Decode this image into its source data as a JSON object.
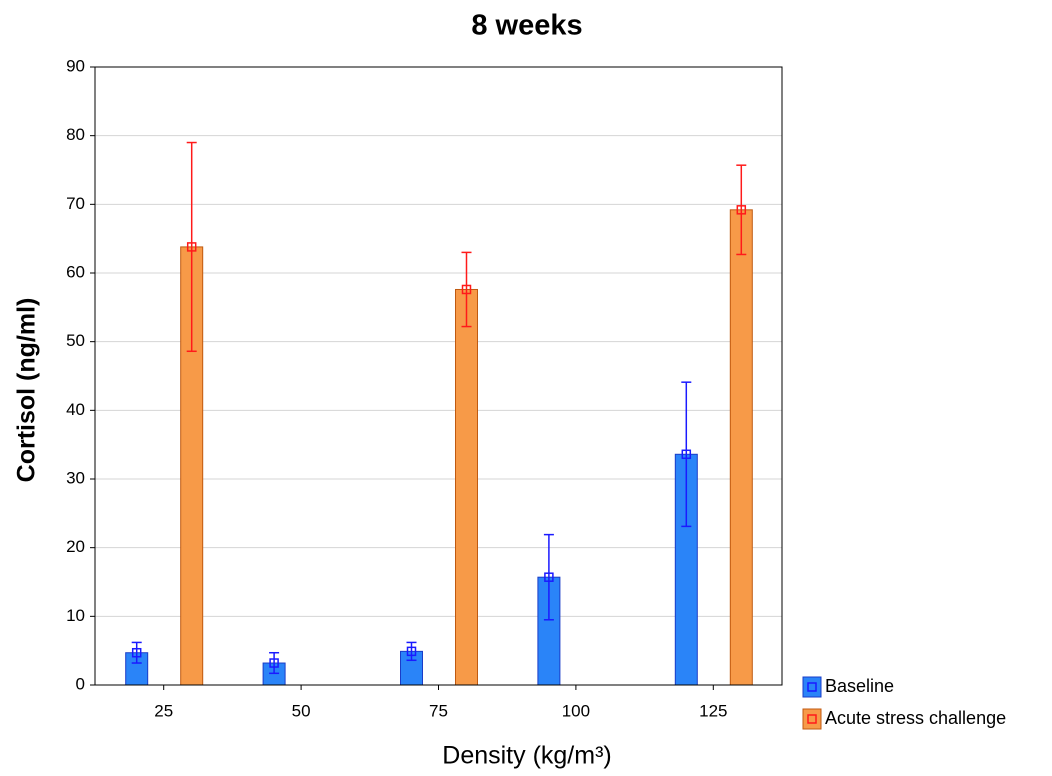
{
  "chart_data": {
    "type": "bar",
    "title": "8 weeks",
    "x_label": "Density (kg/m³)",
    "y_label": "Cortisol (ng/ml)",
    "categories": [
      "25",
      "50",
      "75",
      "100",
      "125"
    ],
    "series": [
      {
        "name": "Baseline",
        "color": "#2a84f8",
        "edge_color": "#1a3cc8",
        "error_color": "#1a1aff",
        "values": [
          4.7,
          3.2,
          4.9,
          15.7,
          33.6
        ],
        "errors": [
          1.5,
          1.5,
          1.3,
          6.2,
          10.5
        ]
      },
      {
        "name": "Acute stress challenge",
        "color": "#f79a48",
        "edge_color": "#c05a10",
        "error_color": "#ff1a1a",
        "values": [
          63.8,
          null,
          57.6,
          null,
          69.2
        ],
        "errors": [
          15.2,
          null,
          5.4,
          null,
          6.5
        ]
      }
    ],
    "ylim": [
      0,
      90
    ],
    "yticks": [
      0,
      10,
      20,
      30,
      40,
      50,
      60,
      70,
      80,
      90
    ],
    "grid": true
  }
}
